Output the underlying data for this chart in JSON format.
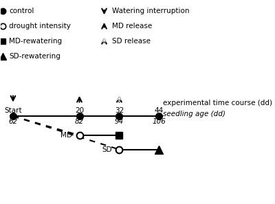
{
  "legend_items_left": [
    {
      "label": "control",
      "marker": "o",
      "filled": true
    },
    {
      "label": "drought intensity",
      "marker": "o",
      "filled": false
    },
    {
      "label": "MD-rewatering",
      "marker": "s",
      "filled": true
    },
    {
      "label": "SD-rewatering",
      "marker": "^",
      "filled": true
    }
  ],
  "legend_items_right": [
    {
      "label": "Watering interruption",
      "arrow": "down",
      "filled": true
    },
    {
      "label": "MD release",
      "arrow": "up",
      "filled": true
    },
    {
      "label": "SD release",
      "arrow": "up",
      "filled": false
    }
  ],
  "time_points": [
    0,
    20,
    32,
    44
  ],
  "time_labels": [
    "Start",
    "20",
    "32",
    "44"
  ],
  "seedling_ages": [
    "62",
    "82",
    "94",
    "106"
  ],
  "xlabel_time": "experimental time course (dd)",
  "xlabel_seedling": "seedling age (dd)",
  "bg_color": "#ffffff"
}
